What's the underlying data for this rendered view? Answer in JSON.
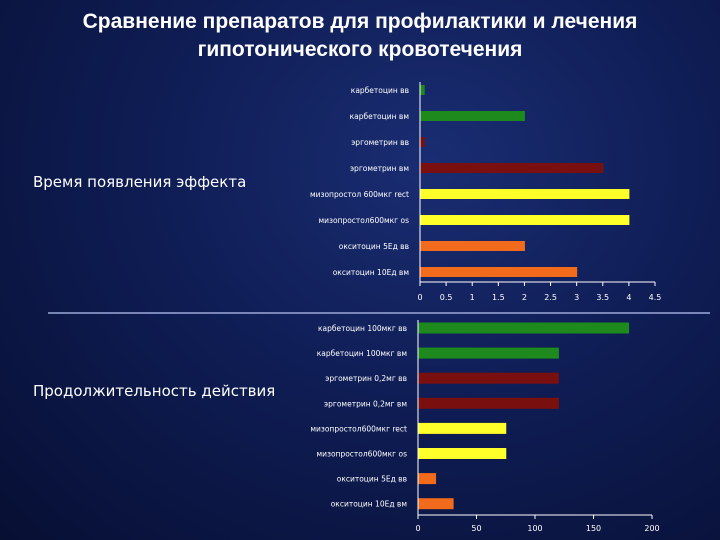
{
  "title": {
    "line1": "Сравнение препаратов для профилактики и лечения",
    "line2": "гипотонического кровотечения"
  },
  "labels": {
    "onset": "Время появления эффекта",
    "duration": "Продолжительность действия"
  },
  "colors": {
    "green": "#1e8a1e",
    "darkred": "#7a0f0f",
    "yellow": "#ffff2a",
    "orange": "#f26a1b",
    "axis": "#ffffff"
  },
  "chart_data": [
    {
      "type": "bar",
      "orientation": "horizontal",
      "categories": [
        "карбетоцин вв",
        "карбетоцин вм",
        "эргометрин вв",
        "эргометрин вм",
        "мизопростол 600мкг rect",
        "мизопростол600мкг os",
        "окситоцин 5Ед вв",
        "окситоцин 10Ед вм"
      ],
      "values": [
        0.08,
        2.0,
        0.08,
        3.5,
        4.0,
        4.0,
        2.0,
        3.0
      ],
      "colors": [
        "#1e8a1e",
        "#1e8a1e",
        "#7a0f0f",
        "#7a0f0f",
        "#ffff2a",
        "#ffff2a",
        "#f26a1b",
        "#f26a1b"
      ],
      "xlim": [
        0,
        4.5
      ],
      "ticks": [
        "0",
        "0.5",
        "1",
        "1.5",
        "2",
        "2.5",
        "3",
        "3.5",
        "4",
        "4.5"
      ],
      "tick_values": [
        0,
        0.5,
        1,
        1.5,
        2,
        2.5,
        3,
        3.5,
        4,
        4.5
      ],
      "grid": false
    },
    {
      "type": "bar",
      "orientation": "horizontal",
      "categories": [
        "карбетоцин 100мкг вв",
        "карбетоцин 100мкг вм",
        "эргометрин 0,2мг вв",
        "эргометрин 0,2мг вм",
        "мизопростол600мкг rect",
        "мизопростол600мкг os",
        "окситоцин 5Ед вв",
        "окситоцин 10Ед вм"
      ],
      "values": [
        180,
        120,
        120,
        120,
        75,
        75,
        15,
        30
      ],
      "colors": [
        "#1e8a1e",
        "#1e8a1e",
        "#7a0f0f",
        "#7a0f0f",
        "#ffff2a",
        "#ffff2a",
        "#f26a1b",
        "#f26a1b"
      ],
      "xlim": [
        0,
        200
      ],
      "ticks": [
        "0",
        "50",
        "100",
        "150",
        "200"
      ],
      "tick_values": [
        0,
        50,
        100,
        150,
        200
      ],
      "grid": false
    }
  ]
}
